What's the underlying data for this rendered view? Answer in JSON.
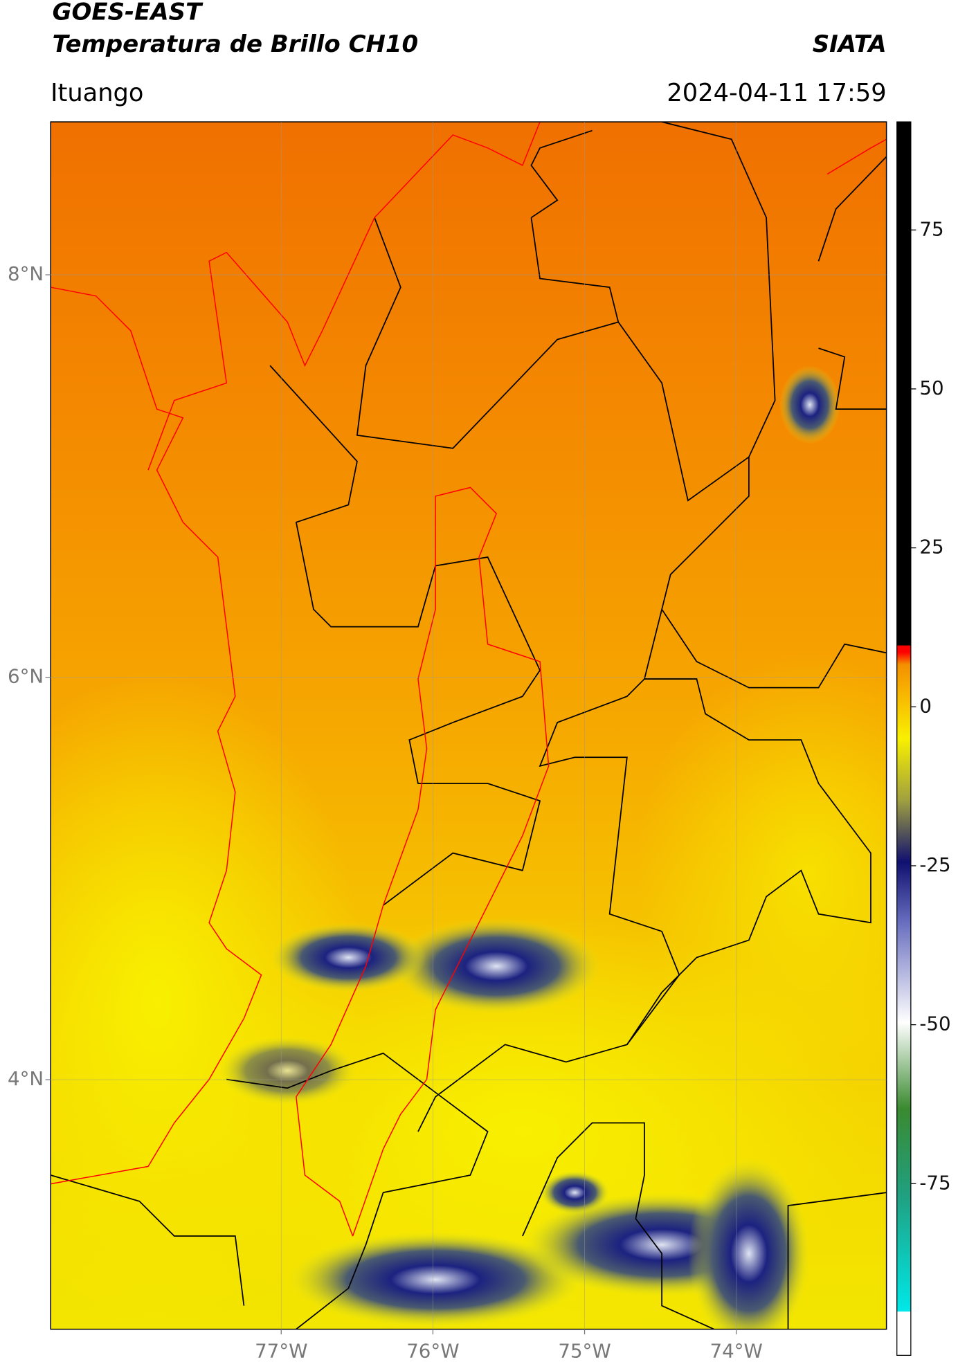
{
  "header": {
    "title": "GOES-EAST",
    "subtitle": "Temperatura de Brillo CH10",
    "source": "SIATA",
    "location": "Ituango",
    "datetime": "2024-04-11 17:59"
  },
  "map": {
    "xlim": [
      -78.52,
      -73.01
    ],
    "ylim": [
      2.76,
      8.76
    ],
    "xticks": [
      {
        "value": -77,
        "label": "77°W"
      },
      {
        "value": -76,
        "label": "76°W"
      },
      {
        "value": -75,
        "label": "75°W"
      },
      {
        "value": -74,
        "label": "74°W"
      }
    ],
    "yticks": [
      {
        "value": 8,
        "label": "8°N"
      },
      {
        "value": 6,
        "label": "6°N"
      },
      {
        "value": 4,
        "label": "4°N"
      }
    ],
    "grid": true
  },
  "colorbar": {
    "ylim": [
      -102,
      92
    ],
    "yticks": [
      75,
      50,
      25,
      0,
      -25,
      -50,
      -75
    ]
  }
}
